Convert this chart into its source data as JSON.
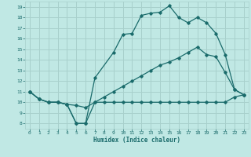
{
  "xlabel": "Humidex (Indice chaleur)",
  "bg_color": "#c0e8e4",
  "grid_color": "#a8d0cc",
  "line_color": "#1a6b6b",
  "xlim": [
    -0.5,
    23.5
  ],
  "ylim": [
    7.5,
    19.5
  ],
  "xticks": [
    0,
    1,
    2,
    3,
    4,
    5,
    6,
    7,
    8,
    9,
    10,
    11,
    12,
    13,
    14,
    15,
    16,
    17,
    18,
    19,
    20,
    21,
    22,
    23
  ],
  "yticks": [
    8,
    9,
    10,
    11,
    12,
    13,
    14,
    15,
    16,
    17,
    18,
    19
  ],
  "line1_x": [
    0,
    1,
    2,
    3,
    4,
    5,
    6,
    7,
    8,
    9,
    10,
    11,
    12,
    13,
    14,
    15,
    16,
    17,
    18,
    19,
    20,
    21,
    22,
    23
  ],
  "line1_y": [
    11,
    10.3,
    10,
    10,
    9.8,
    8,
    8,
    10,
    10,
    10,
    10,
    10,
    10,
    10,
    10,
    10,
    10,
    10,
    10,
    10,
    10,
    10,
    10.5,
    10.7
  ],
  "line2_x": [
    0,
    1,
    2,
    3,
    4,
    5,
    6,
    7,
    9,
    10,
    11,
    12,
    13,
    14,
    15,
    16,
    17,
    18,
    19,
    20,
    21,
    22,
    23
  ],
  "line2_y": [
    11,
    10.3,
    10,
    10,
    9.8,
    8,
    8,
    12.3,
    14.7,
    16.4,
    16.5,
    18.2,
    18.4,
    18.5,
    19.1,
    18,
    17.5,
    18,
    17.5,
    16.5,
    14.5,
    11.2,
    10.7
  ],
  "line3_x": [
    0,
    1,
    2,
    3,
    4,
    5,
    6,
    7,
    8,
    9,
    10,
    11,
    12,
    13,
    14,
    15,
    16,
    17,
    18,
    19,
    20,
    21,
    22,
    23
  ],
  "line3_y": [
    11,
    10.3,
    10,
    10,
    9.8,
    9.7,
    9.5,
    10,
    10.5,
    11.0,
    11.5,
    12.0,
    12.5,
    13.0,
    13.5,
    13.8,
    14.2,
    14.7,
    15.2,
    14.5,
    14.3,
    12.8,
    11.2,
    10.7
  ]
}
